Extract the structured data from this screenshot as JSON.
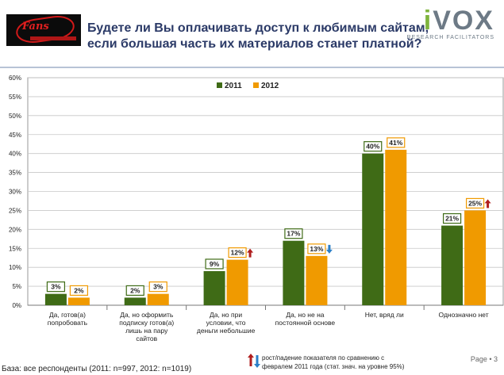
{
  "title_line1": "Будете ли Вы оплачивать доступ к любимым сайтам,",
  "title_line2": "если большая часть их материалов станет платной?",
  "brand": {
    "name_first": "i",
    "name_rest": "VOX",
    "tagline": "RESEARCH FACILITATORS"
  },
  "logo_text": "Fans",
  "footer": {
    "base": "База: все респонденты (2011: n=997, 2012: n=1019)",
    "note_line1": "рост/падение показателя по сравнению с",
    "note_line2": "февралем 2011 года (стат. знач. на уровне 95%)",
    "page": "Page • 3"
  },
  "colors": {
    "s2011": "#3f6b16",
    "s2012": "#f09a00",
    "up": "#b01e1e",
    "down": "#2b7fc8"
  },
  "chart_data": {
    "type": "bar",
    "ylim": [
      0,
      60
    ],
    "yticks": [
      "0%",
      "5%",
      "10%",
      "15%",
      "20%",
      "25%",
      "30%",
      "35%",
      "40%",
      "45%",
      "50%",
      "55%",
      "60%"
    ],
    "legend_position": "top-center",
    "grid": true,
    "categories": [
      [
        "Да, готов(а)",
        "попробовать"
      ],
      [
        "Да, но оформить",
        "подписку готов(а)",
        "лишь на пару",
        "сайтов"
      ],
      [
        "Да, но при",
        "условии, что",
        "деньги небольшие"
      ],
      [
        "Да, но не на",
        "постоянной основе"
      ],
      [
        "Нет, вряд ли"
      ],
      [
        "Однозначно нет"
      ]
    ],
    "series": [
      {
        "name": "2011",
        "values": [
          3,
          2,
          9,
          17,
          40,
          21
        ],
        "labels": [
          "3%",
          "2%",
          "9%",
          "17%",
          "40%",
          "21%"
        ]
      },
      {
        "name": "2012",
        "values": [
          2,
          3,
          12,
          13,
          41,
          25
        ],
        "labels": [
          "2%",
          "3%",
          "12%",
          "13%",
          "41%",
          "25%"
        ]
      }
    ],
    "change_markers": [
      "",
      "",
      "up",
      "down",
      "",
      "up"
    ]
  }
}
